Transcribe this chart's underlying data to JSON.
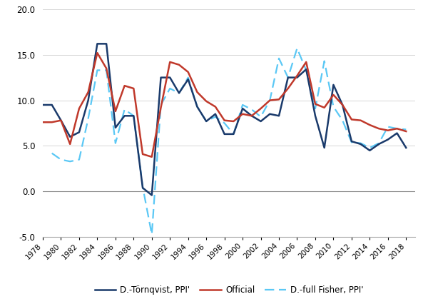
{
  "years": [
    1978,
    1979,
    1980,
    1981,
    1982,
    1983,
    1984,
    1985,
    1986,
    1987,
    1988,
    1989,
    1990,
    1991,
    1992,
    1993,
    1994,
    1995,
    1996,
    1997,
    1998,
    1999,
    2000,
    2001,
    2002,
    2003,
    2004,
    2005,
    2006,
    2007,
    2008,
    2009,
    2010,
    2011,
    2012,
    2013,
    2014,
    2015,
    2016,
    2017,
    2018
  ],
  "official": [
    7.6,
    7.6,
    7.8,
    5.2,
    9.1,
    10.9,
    15.2,
    13.5,
    8.8,
    11.6,
    11.3,
    4.1,
    3.8,
    9.2,
    14.2,
    13.9,
    13.1,
    10.9,
    9.9,
    9.3,
    7.8,
    7.7,
    8.5,
    8.3,
    9.1,
    10.0,
    10.1,
    11.3,
    12.7,
    14.2,
    9.6,
    9.2,
    10.6,
    9.5,
    7.9,
    7.8,
    7.3,
    6.9,
    6.7,
    6.9,
    6.6
  ],
  "fisher": [
    null,
    4.2,
    3.5,
    3.3,
    3.5,
    8.0,
    13.3,
    13.3,
    5.3,
    9.0,
    8.3,
    0.5,
    -4.7,
    9.5,
    11.3,
    10.8,
    12.5,
    9.3,
    7.7,
    8.2,
    7.5,
    6.3,
    9.5,
    9.0,
    8.2,
    10.0,
    14.6,
    12.5,
    15.7,
    13.3,
    9.1,
    14.3,
    9.3,
    7.8,
    5.4,
    5.3,
    4.8,
    5.3,
    7.1,
    6.9,
    6.8
  ],
  "tornqvist": [
    9.5,
    9.5,
    7.8,
    6.0,
    6.5,
    10.0,
    16.2,
    16.2,
    7.0,
    8.3,
    8.3,
    0.4,
    -0.4,
    12.5,
    12.5,
    10.8,
    12.3,
    9.3,
    7.7,
    8.5,
    6.3,
    6.3,
    9.1,
    8.3,
    7.7,
    8.5,
    8.3,
    12.5,
    12.5,
    13.4,
    8.3,
    4.8,
    11.7,
    9.5,
    5.5,
    5.2,
    4.5,
    5.2,
    5.7,
    6.4,
    4.8
  ],
  "official_color": "#c0392b",
  "fisher_color": "#5bc8f5",
  "tornqvist_color": "#1a3a6b",
  "xlim_min": 1978,
  "xlim_max": 2019,
  "ylim_min": -5.0,
  "ylim_max": 20.0,
  "yticks": [
    -5.0,
    0.0,
    5.0,
    10.0,
    15.0,
    20.0
  ],
  "xtick_positions": [
    1978,
    1980,
    1982,
    1984,
    1986,
    1988,
    1990,
    1992,
    1994,
    1996,
    1998,
    2000,
    2002,
    2004,
    2006,
    2008,
    2010,
    2012,
    2014,
    2016,
    2018
  ],
  "legend_official": "Official",
  "legend_fisher": "D.-full Fisher, PPI'",
  "legend_tornqvist": "D.-Törnqvist, PPI'",
  "official_linewidth": 1.8,
  "fisher_linewidth": 1.6,
  "tornqvist_linewidth": 1.8
}
